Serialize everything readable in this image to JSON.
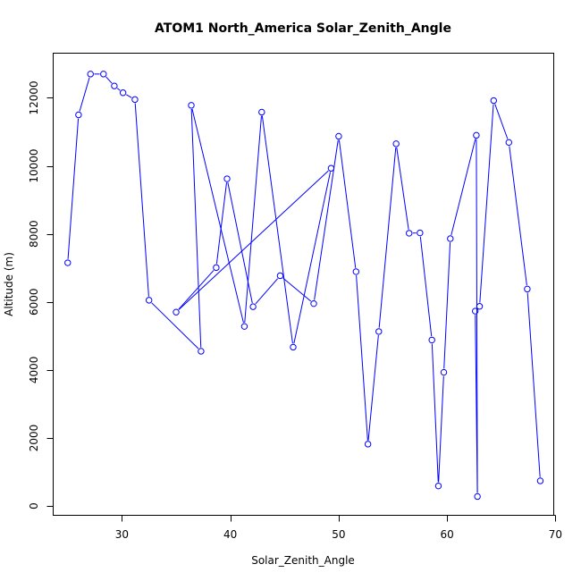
{
  "chart_data": {
    "type": "line",
    "title": "ATOM1 North_America Solar_Zenith_Angle",
    "xlabel": "Solar_Zenith_Angle",
    "ylabel": "Altitude (m)",
    "xlim": [
      23.7,
      69.8
    ],
    "ylim": [
      -260,
      13300
    ],
    "xticks": [
      30,
      40,
      50,
      60,
      70
    ],
    "yticks": [
      0,
      2000,
      4000,
      6000,
      8000,
      10000,
      12000
    ],
    "xtick_labels": [
      "30",
      "40",
      "50",
      "60",
      "70"
    ],
    "ytick_labels": [
      "0",
      "2000",
      "4000",
      "6000",
      "8000",
      "10000",
      "12000"
    ],
    "grid": false,
    "color": "#0000ff",
    "x": [
      25.0,
      26.0,
      27.1,
      28.3,
      29.3,
      30.1,
      31.2,
      32.5,
      37.3,
      36.4,
      41.3,
      42.9,
      45.8,
      49.3,
      35.0,
      38.7,
      39.7,
      42.1,
      44.6,
      47.7,
      50.0,
      51.6,
      52.7,
      53.7,
      55.3,
      56.5,
      57.5,
      58.6,
      59.2,
      59.7,
      60.3,
      62.7,
      62.8,
      62.6,
      63.0,
      64.3,
      65.7,
      67.4,
      68.6
    ],
    "y": [
      7150,
      11500,
      12700,
      12700,
      12350,
      12150,
      11950,
      6050,
      4550,
      11780,
      5280,
      11580,
      4670,
      9930,
      5700,
      7010,
      9620,
      5860,
      6770,
      5950,
      10870,
      6890,
      1820,
      5130,
      10650,
      8020,
      8030,
      4880,
      590,
      3930,
      7860,
      10900,
      280,
      5730,
      5870,
      11920,
      10690,
      6380,
      740
    ]
  }
}
